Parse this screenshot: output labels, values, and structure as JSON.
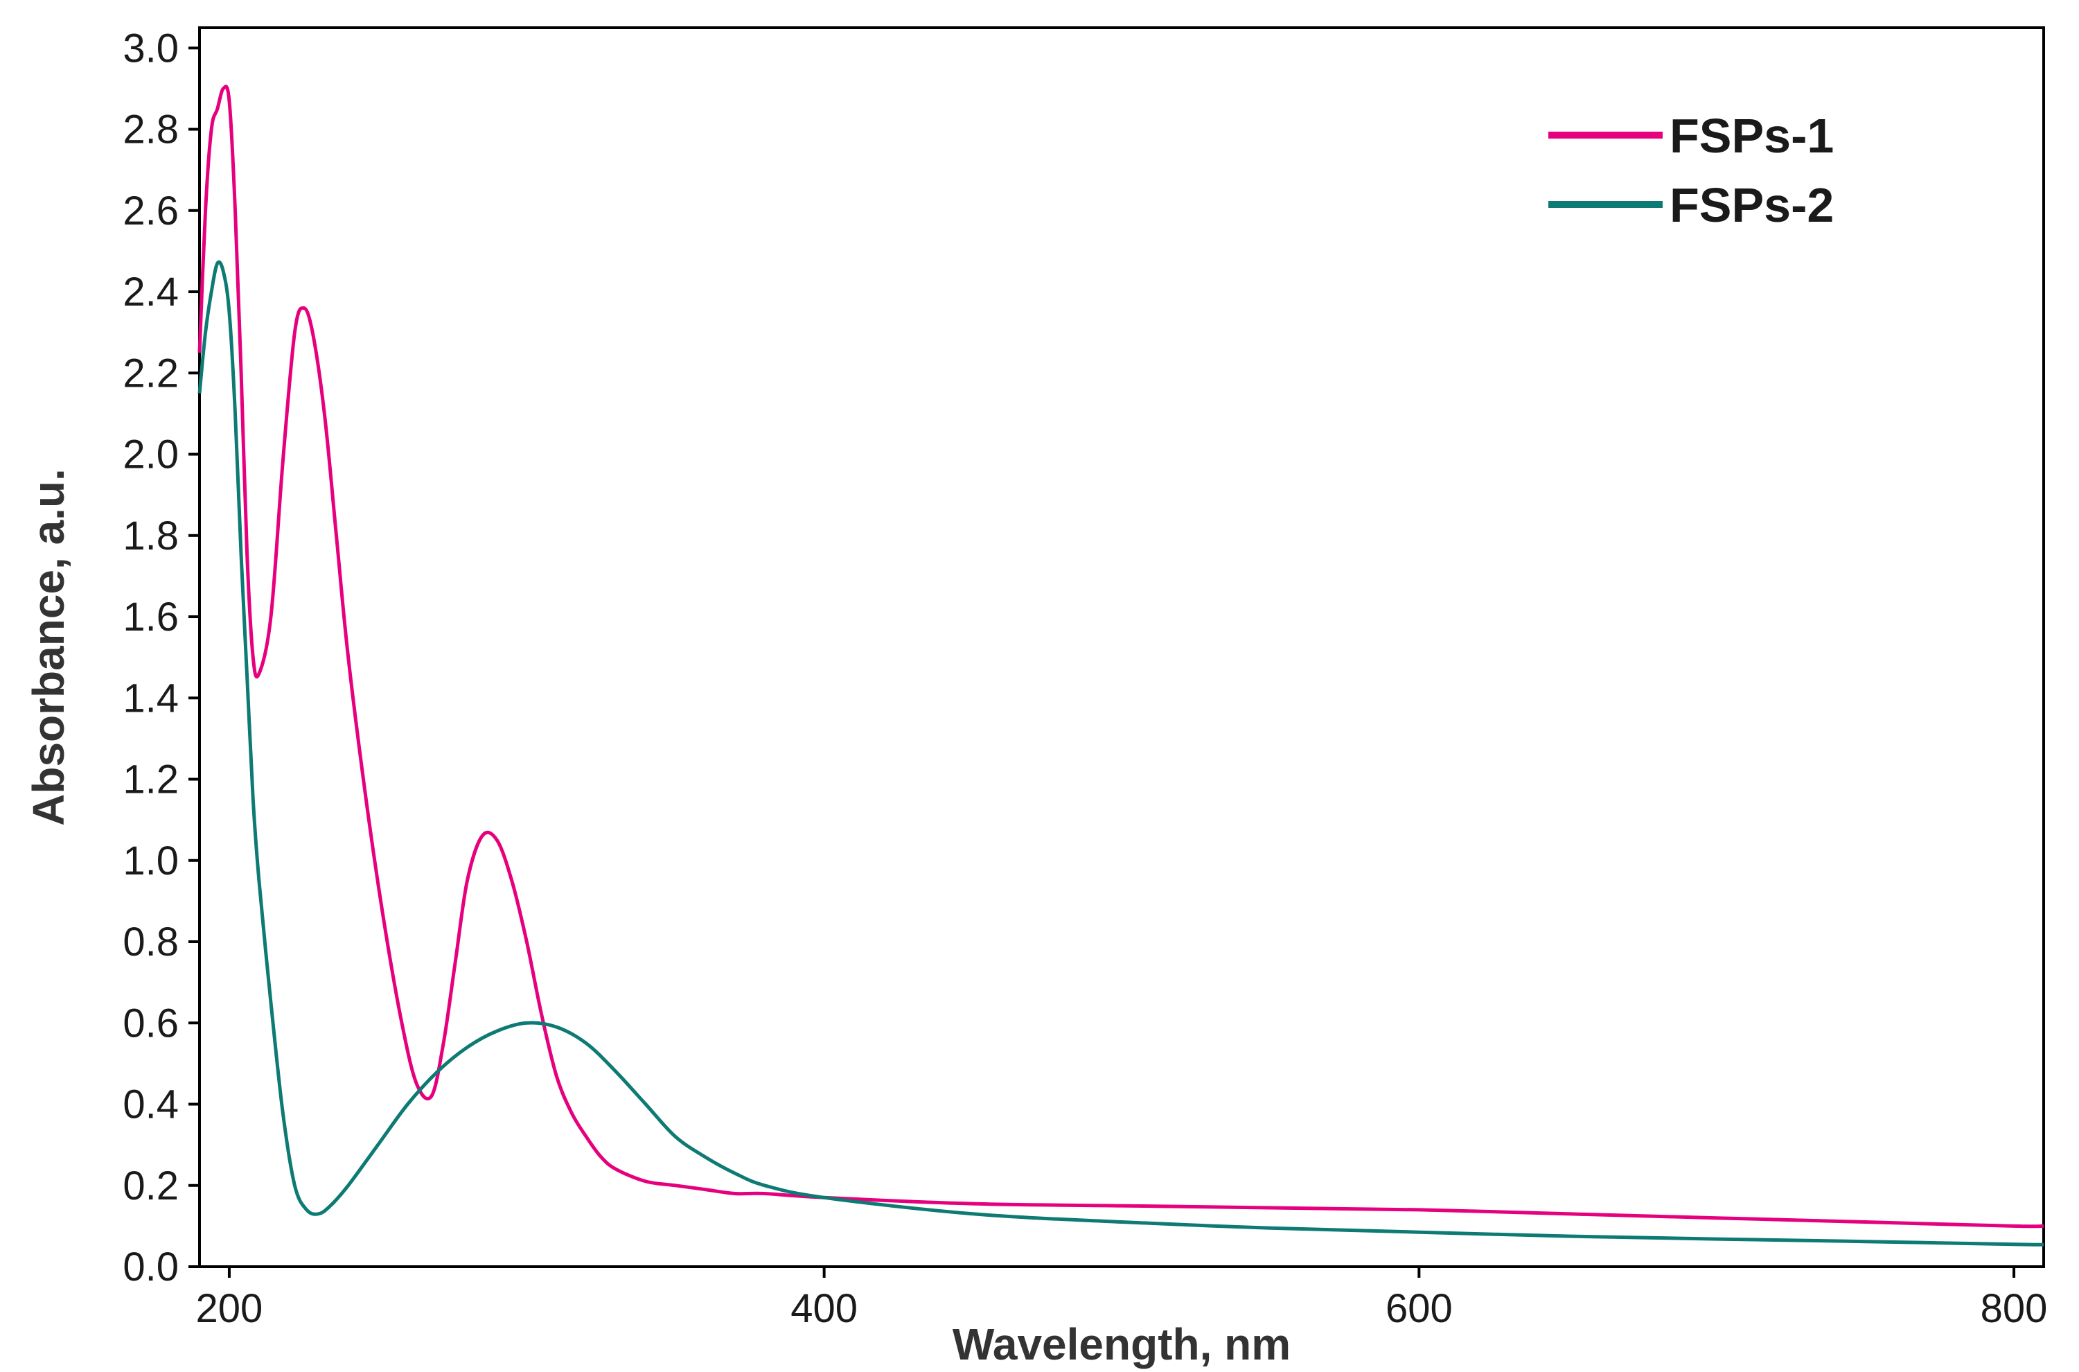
{
  "chart_data": {
    "type": "line",
    "xlabel": "Wavelength, nm",
    "ylabel": "Absorbance, a.u.",
    "xlim": [
      190,
      810
    ],
    "ylim": [
      0.0,
      3.05
    ],
    "xticks": [
      200,
      400,
      600,
      800
    ],
    "xtick_labels": [
      "200",
      "400",
      "600",
      "800"
    ],
    "yticks": [
      0.0,
      0.2,
      0.4,
      0.6,
      0.8,
      1.0,
      1.2,
      1.4,
      1.6,
      1.8,
      2.0,
      2.2,
      2.4,
      2.6,
      2.8,
      3.0
    ],
    "ytick_labels": [
      "0.0",
      "0.2",
      "0.4",
      "0.6",
      "0.8",
      "1.0",
      "1.2",
      "1.4",
      "1.6",
      "1.8",
      "2.0",
      "2.2",
      "2.4",
      "2.6",
      "2.8",
      "3.0"
    ],
    "grid": false,
    "legend_position": "top-right",
    "series": [
      {
        "name": "FSPs-1",
        "color": "#e6007e",
        "x": [
          190,
          192,
          194,
          196,
          198,
          200,
          202,
          204,
          206,
          208,
          210,
          214,
          218,
          222,
          225,
          228,
          232,
          236,
          240,
          246,
          252,
          258,
          263,
          268,
          272,
          276,
          280,
          285,
          290,
          295,
          300,
          305,
          310,
          315,
          320,
          325,
          330,
          340,
          350,
          360,
          370,
          380,
          400,
          450,
          500,
          550,
          600,
          650,
          700,
          750,
          800,
          810
        ],
        "y": [
          2.25,
          2.6,
          2.8,
          2.85,
          2.9,
          2.87,
          2.6,
          2.2,
          1.75,
          1.5,
          1.46,
          1.6,
          1.98,
          2.3,
          2.36,
          2.3,
          2.1,
          1.8,
          1.5,
          1.15,
          0.85,
          0.6,
          0.45,
          0.42,
          0.55,
          0.75,
          0.95,
          1.06,
          1.05,
          0.95,
          0.8,
          0.62,
          0.47,
          0.38,
          0.32,
          0.27,
          0.24,
          0.21,
          0.2,
          0.19,
          0.18,
          0.18,
          0.17,
          0.155,
          0.15,
          0.145,
          0.14,
          0.13,
          0.12,
          0.11,
          0.1,
          0.1
        ]
      },
      {
        "name": "FSPs-2",
        "color": "#0d7a73",
        "x": [
          190,
          192,
          194,
          196,
          198,
          200,
          202,
          204,
          206,
          208,
          210,
          214,
          218,
          222,
          226,
          230,
          234,
          240,
          250,
          260,
          270,
          280,
          290,
          300,
          310,
          320,
          330,
          340,
          350,
          360,
          370,
          380,
          400,
          450,
          500,
          550,
          600,
          650,
          700,
          750,
          800,
          810
        ],
        "y": [
          2.15,
          2.3,
          2.4,
          2.47,
          2.45,
          2.35,
          2.1,
          1.75,
          1.45,
          1.15,
          0.95,
          0.65,
          0.38,
          0.2,
          0.14,
          0.13,
          0.15,
          0.2,
          0.3,
          0.4,
          0.48,
          0.54,
          0.58,
          0.6,
          0.59,
          0.55,
          0.48,
          0.4,
          0.32,
          0.27,
          0.23,
          0.2,
          0.17,
          0.13,
          0.11,
          0.095,
          0.085,
          0.075,
          0.068,
          0.062,
          0.055,
          0.054
        ]
      }
    ]
  }
}
